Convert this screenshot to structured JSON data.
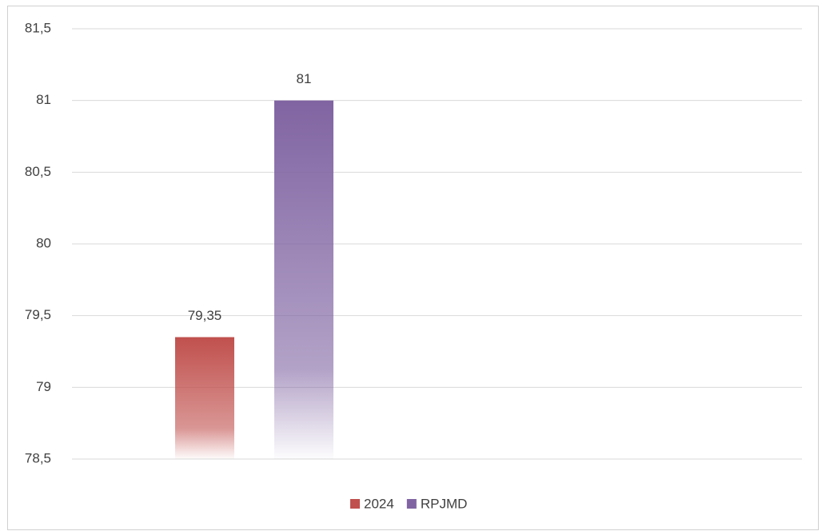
{
  "chart_data": {
    "type": "bar",
    "categories": [
      null
    ],
    "series": [
      {
        "name": "2024",
        "color": "#c0504d",
        "values": [
          79.35
        ],
        "value_labels": [
          "79,35"
        ]
      },
      {
        "name": "RPJMD",
        "color": "#8064a2",
        "values": [
          81
        ],
        "value_labels": [
          "81"
        ]
      }
    ],
    "ylim": [
      78.5,
      81.5
    ],
    "yticks": [
      {
        "value": 78.5,
        "label": "78,5"
      },
      79,
      {
        "value": 79.5,
        "label": "79,5"
      },
      80,
      {
        "value": 80.5,
        "label": "80,5"
      },
      81,
      {
        "value": 81.5,
        "label": "81,5"
      }
    ],
    "grid": true,
    "legend": "bottom"
  }
}
